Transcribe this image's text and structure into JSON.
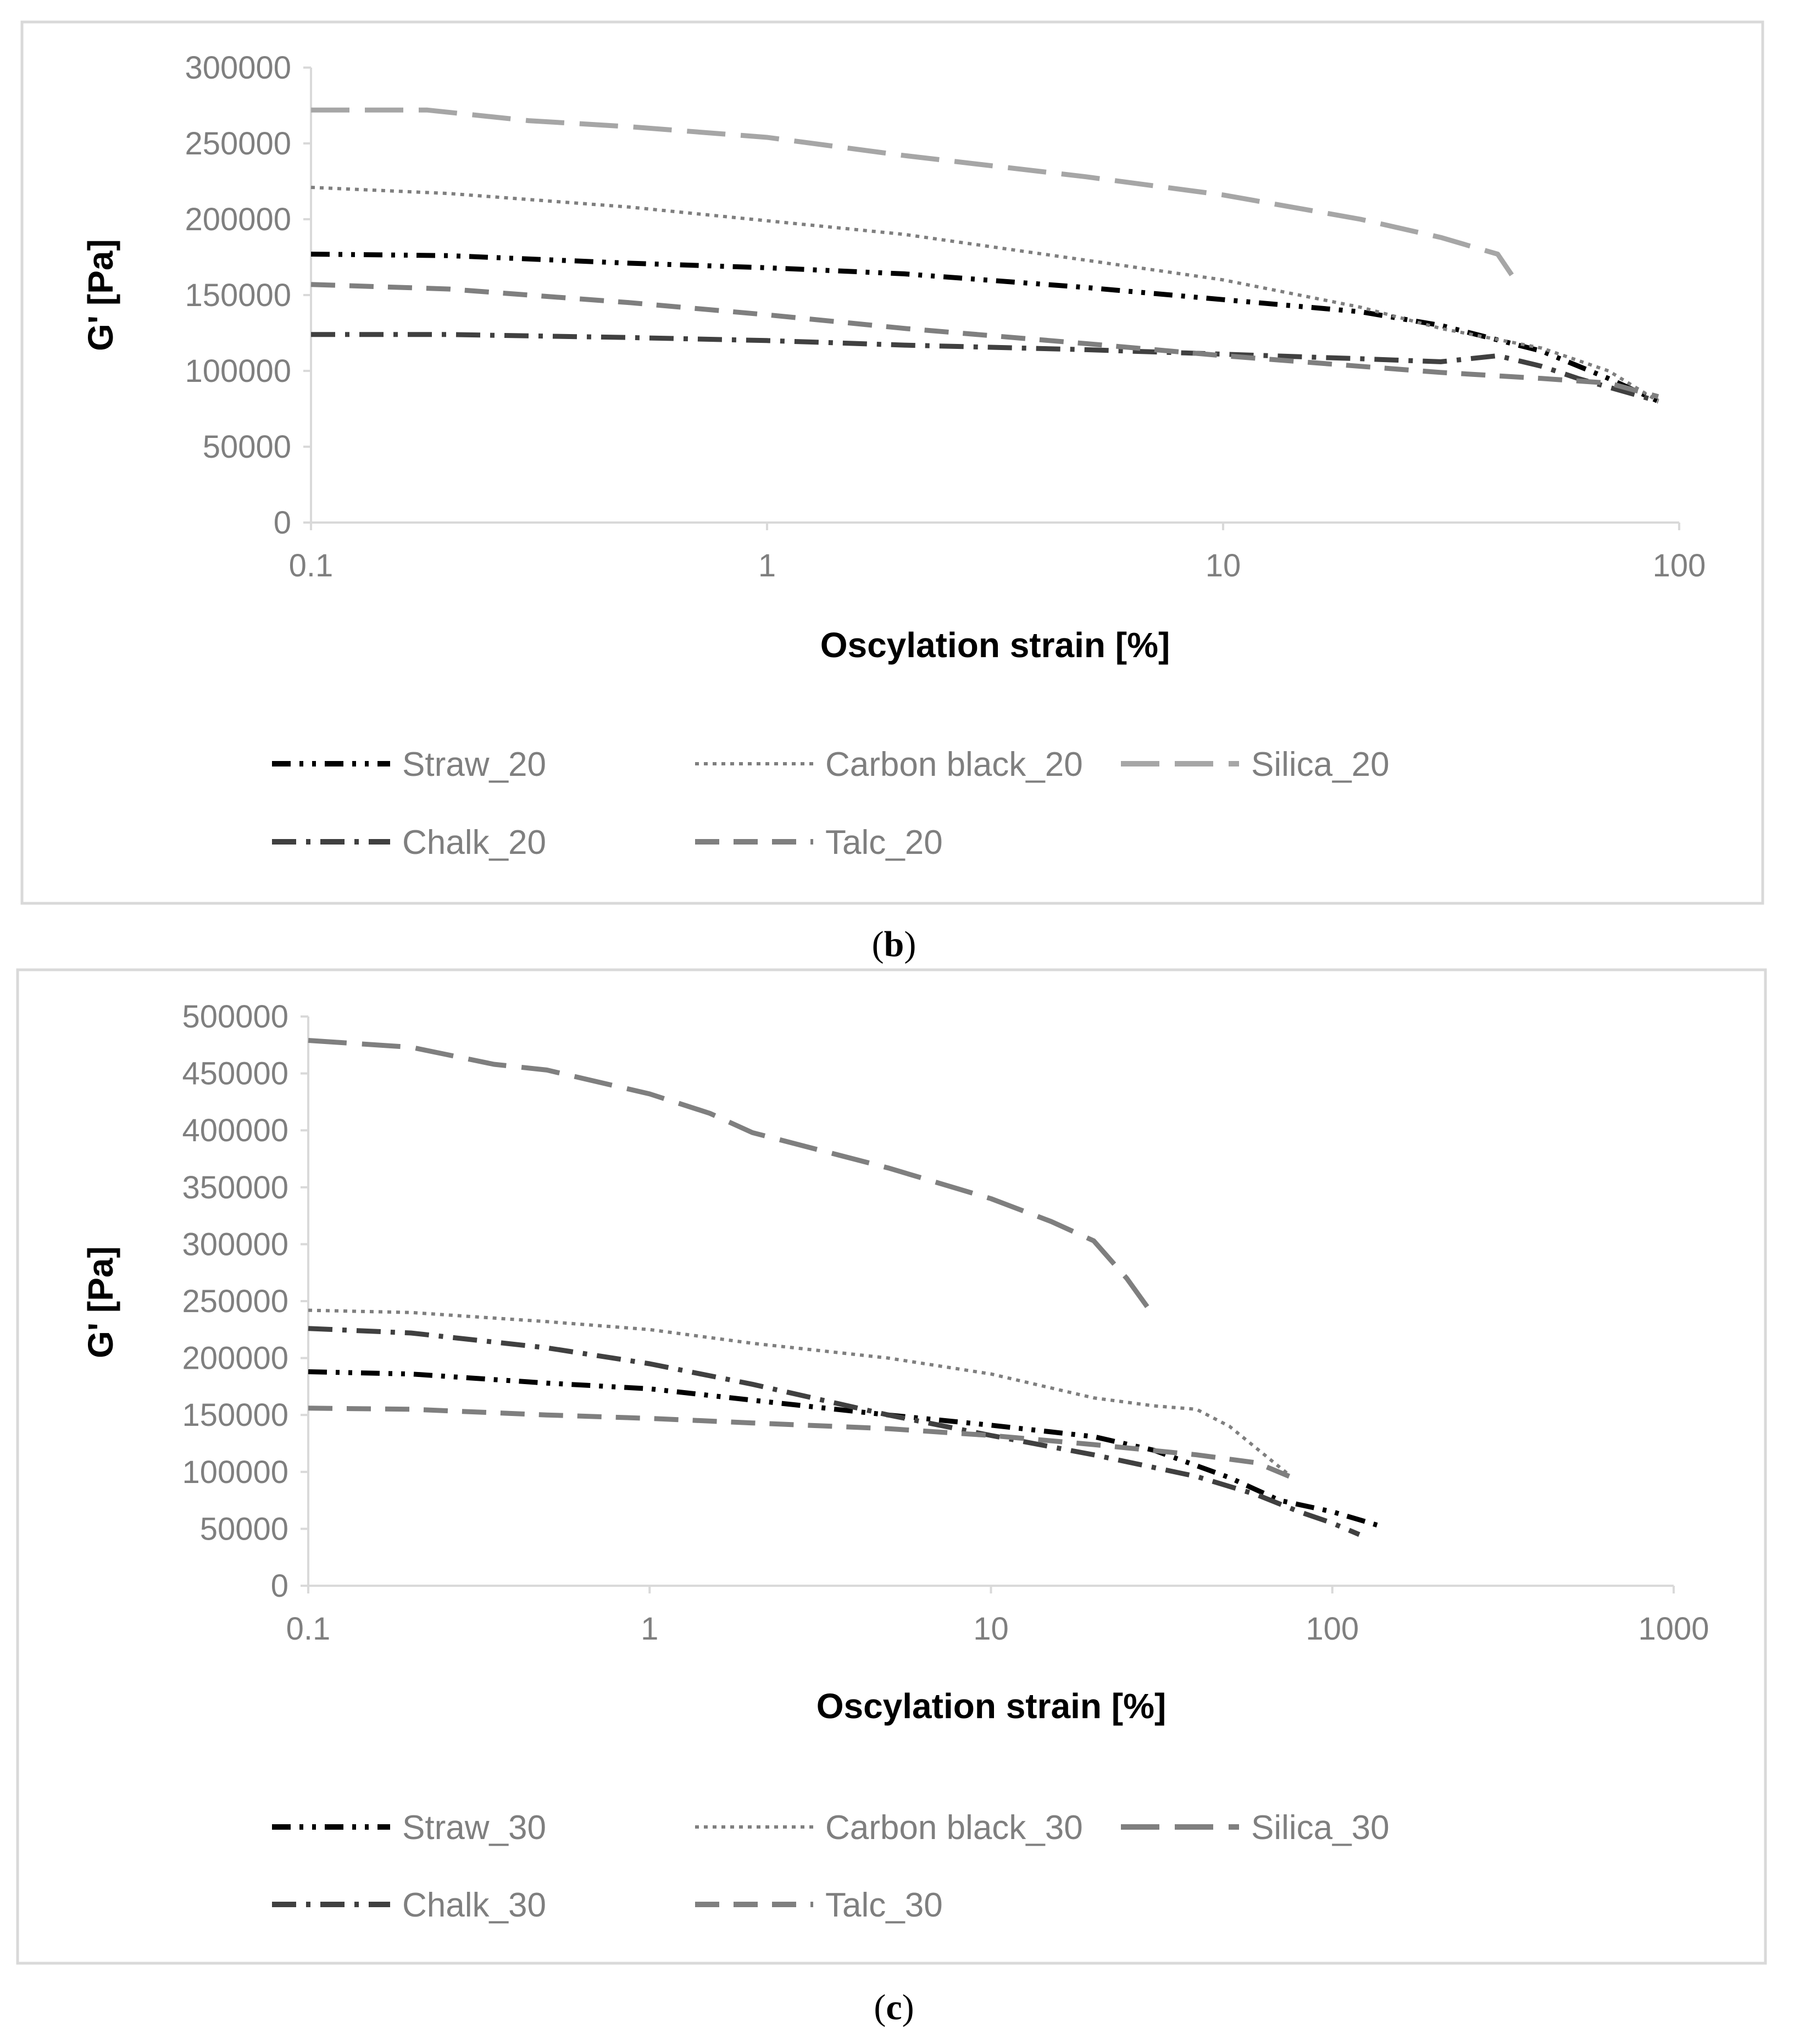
{
  "chart_data": [
    {
      "type": "line",
      "panel": "b",
      "caption_letter": "b",
      "caption_open": "(",
      "caption_close": ")",
      "xlabel": "Oscylation strain [%]",
      "ylabel": "G' [Pa]",
      "xscale": "log",
      "xlim": [
        0.1,
        100
      ],
      "ylim": [
        0,
        300000
      ],
      "grid": false,
      "xticks": [
        {
          "v": 0.1,
          "label": "0.1"
        },
        {
          "v": 1,
          "label": "1"
        },
        {
          "v": 10,
          "label": "10"
        },
        {
          "v": 100,
          "label": "100"
        }
      ],
      "yticks": [
        {
          "v": 0,
          "label": "0"
        },
        {
          "v": 50000,
          "label": "50000"
        },
        {
          "v": 100000,
          "label": "100000"
        },
        {
          "v": 150000,
          "label": "150000"
        },
        {
          "v": 200000,
          "label": "200000"
        },
        {
          "v": 250000,
          "label": "250000"
        },
        {
          "v": 300000,
          "label": "300000"
        }
      ],
      "legend_position": "bottom",
      "series": [
        {
          "name": "Straw_20",
          "style": "dashdotdot",
          "color": "#000000",
          "points": [
            [
              0.1,
              177000
            ],
            [
              0.2,
              176000
            ],
            [
              0.5,
              171000
            ],
            [
              1,
              168000
            ],
            [
              2,
              164000
            ],
            [
              5,
              155000
            ],
            [
              10,
              147000
            ],
            [
              20,
              139000
            ],
            [
              30,
              130000
            ],
            [
              50,
              113000
            ],
            [
              70,
              95000
            ],
            [
              90,
              80000
            ]
          ]
        },
        {
          "name": "Carbon black_20",
          "style": "dotted",
          "color": "#7f7f7f",
          "points": [
            [
              0.1,
              221000
            ],
            [
              0.2,
              217000
            ],
            [
              0.5,
              208000
            ],
            [
              1,
              199000
            ],
            [
              2,
              190000
            ],
            [
              5,
              173000
            ],
            [
              10,
              160000
            ],
            [
              20,
              142000
            ],
            [
              30,
              128000
            ],
            [
              50,
              115000
            ],
            [
              70,
              100000
            ],
            [
              90,
              80000
            ]
          ]
        },
        {
          "name": "Silica_20",
          "style": "longdash",
          "color": "#a6a6a6",
          "points": [
            [
              0.1,
              272000
            ],
            [
              0.18,
              272000
            ],
            [
              0.3,
              265000
            ],
            [
              0.5,
              261000
            ],
            [
              1,
              254000
            ],
            [
              2,
              242000
            ],
            [
              5,
              228000
            ],
            [
              10,
              216000
            ],
            [
              20,
              200000
            ],
            [
              30,
              188000
            ],
            [
              40,
              177000
            ],
            [
              43,
              163000
            ]
          ]
        },
        {
          "name": "Chalk_20",
          "style": "dashdot",
          "color": "#404040",
          "points": [
            [
              0.1,
              124000
            ],
            [
              0.2,
              124000
            ],
            [
              0.5,
              122000
            ],
            [
              1,
              120000
            ],
            [
              2,
              117000
            ],
            [
              5,
              114000
            ],
            [
              10,
              111000
            ],
            [
              20,
              108000
            ],
            [
              30,
              106000
            ],
            [
              40,
              110000
            ],
            [
              50,
              103000
            ],
            [
              60,
              95000
            ],
            [
              90,
              80000
            ]
          ]
        },
        {
          "name": "Talc_20",
          "style": "dashed",
          "color": "#7f7f7f",
          "points": [
            [
              0.1,
              157000
            ],
            [
              0.2,
              154000
            ],
            [
              0.5,
              145000
            ],
            [
              1,
              137000
            ],
            [
              2,
              128000
            ],
            [
              5,
              118000
            ],
            [
              10,
              110000
            ],
            [
              20,
              103000
            ],
            [
              30,
              99000
            ],
            [
              50,
              95000
            ],
            [
              70,
              92000
            ],
            [
              90,
              83000
            ]
          ]
        }
      ]
    },
    {
      "type": "line",
      "panel": "c",
      "caption_letter": "c",
      "caption_open": "(",
      "caption_close": ")",
      "xlabel": "Oscylation strain [%]",
      "ylabel": "G' [Pa]",
      "xscale": "log",
      "xlim": [
        0.1,
        1000
      ],
      "ylim": [
        0,
        500000
      ],
      "grid": false,
      "xticks": [
        {
          "v": 0.1,
          "label": "0.1"
        },
        {
          "v": 1,
          "label": "1"
        },
        {
          "v": 10,
          "label": "10"
        },
        {
          "v": 100,
          "label": "100"
        },
        {
          "v": 1000,
          "label": "1000"
        }
      ],
      "yticks": [
        {
          "v": 0,
          "label": "0"
        },
        {
          "v": 50000,
          "label": "50000"
        },
        {
          "v": 100000,
          "label": "100000"
        },
        {
          "v": 150000,
          "label": "150000"
        },
        {
          "v": 200000,
          "label": "200000"
        },
        {
          "v": 250000,
          "label": "250000"
        },
        {
          "v": 300000,
          "label": "300000"
        },
        {
          "v": 350000,
          "label": "350000"
        },
        {
          "v": 400000,
          "label": "400000"
        },
        {
          "v": 450000,
          "label": "450000"
        },
        {
          "v": 500000,
          "label": "500000"
        }
      ],
      "legend_position": "bottom",
      "series": [
        {
          "name": "Straw_30",
          "style": "dashdotdot",
          "color": "#000000",
          "points": [
            [
              0.1,
              188000
            ],
            [
              0.2,
              186000
            ],
            [
              0.5,
              178000
            ],
            [
              1,
              173000
            ],
            [
              2,
              163000
            ],
            [
              5,
              150000
            ],
            [
              10,
              141000
            ],
            [
              20,
              131000
            ],
            [
              30,
              119000
            ],
            [
              50,
              95000
            ],
            [
              70,
              75000
            ],
            [
              100,
              65000
            ],
            [
              140,
              52000
            ]
          ]
        },
        {
          "name": "Carbon black_30",
          "style": "dotted",
          "color": "#7f7f7f",
          "points": [
            [
              0.1,
              242000
            ],
            [
              0.2,
              240000
            ],
            [
              0.5,
              232000
            ],
            [
              1,
              225000
            ],
            [
              2,
              213000
            ],
            [
              5,
              200000
            ],
            [
              10,
              186000
            ],
            [
              20,
              165000
            ],
            [
              30,
              158000
            ],
            [
              40,
              155000
            ],
            [
              50,
              140000
            ],
            [
              75,
              97000
            ]
          ]
        },
        {
          "name": "Silica_30",
          "style": "longdash",
          "color": "#7f7f7f",
          "points": [
            [
              0.1,
              479000
            ],
            [
              0.2,
              473000
            ],
            [
              0.35,
              458000
            ],
            [
              0.5,
              453000
            ],
            [
              1,
              432000
            ],
            [
              1.5,
              415000
            ],
            [
              2,
              398000
            ],
            [
              5,
              367000
            ],
            [
              10,
              340000
            ],
            [
              15,
              320000
            ],
            [
              20,
              303000
            ],
            [
              25,
              270000
            ],
            [
              30,
              237000
            ]
          ]
        },
        {
          "name": "Chalk_30",
          "style": "dashdot",
          "color": "#404040",
          "points": [
            [
              0.1,
              226000
            ],
            [
              0.2,
              222000
            ],
            [
              0.5,
              209000
            ],
            [
              1,
              195000
            ],
            [
              2,
              177000
            ],
            [
              5,
              150000
            ],
            [
              10,
              132000
            ],
            [
              20,
              115000
            ],
            [
              40,
              96000
            ],
            [
              60,
              80000
            ],
            [
              80,
              65000
            ],
            [
              100,
              55000
            ],
            [
              120,
              45000
            ]
          ]
        },
        {
          "name": "Talc_30",
          "style": "dashed",
          "color": "#7f7f7f",
          "points": [
            [
              0.1,
              156000
            ],
            [
              0.2,
              155000
            ],
            [
              0.5,
              150000
            ],
            [
              1,
              147000
            ],
            [
              2,
              143000
            ],
            [
              5,
              138000
            ],
            [
              10,
              132000
            ],
            [
              20,
              124000
            ],
            [
              40,
              115000
            ],
            [
              60,
              108000
            ],
            [
              75,
              96000
            ]
          ]
        }
      ]
    }
  ]
}
